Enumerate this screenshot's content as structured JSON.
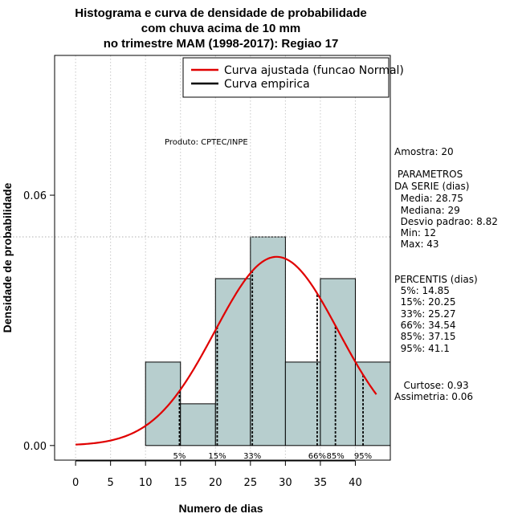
{
  "chart_data": {
    "type": "bar",
    "title_lines": [
      "Histograma e curva de densidade de probabilidade",
      "com chuva acima de 10 mm",
      "no trimestre MAM (1998-2017): Regiao 17"
    ],
    "xlabel": "Numero de dias",
    "ylabel": "Densidade de probabilidade",
    "xlim": [
      -3,
      45
    ],
    "ylim": [
      -0.0035,
      0.0935
    ],
    "x_ticks": [
      0,
      5,
      10,
      15,
      20,
      25,
      30,
      35,
      40
    ],
    "y_ticks": [
      0.0,
      0.06
    ],
    "y_tick_labels": [
      "0.00",
      "0.06"
    ],
    "grid": true,
    "legend_position": "top-right",
    "bins": [
      {
        "from": 10,
        "to": 15,
        "density": 0.02
      },
      {
        "from": 15,
        "to": 20,
        "density": 0.01
      },
      {
        "from": 20,
        "to": 25,
        "density": 0.04
      },
      {
        "from": 25,
        "to": 30,
        "density": 0.05
      },
      {
        "from": 30,
        "to": 35,
        "density": 0.02
      },
      {
        "from": 35,
        "to": 40,
        "density": 0.04
      },
      {
        "from": 40,
        "to": 45,
        "density": 0.02
      }
    ],
    "bar_color": "#b7cece",
    "normal_curve": {
      "name": "Curva ajustada (funcao Normal)",
      "mean": 28.75,
      "sd": 8.82,
      "x_range": [
        0,
        43
      ],
      "color": "#e00000"
    },
    "empirical_curve": {
      "name": "Curva empirica",
      "color": "#000000"
    },
    "percentile_lines": [
      {
        "label": "5%",
        "value": 14.85
      },
      {
        "label": "15%",
        "value": 20.25
      },
      {
        "label": "33%",
        "value": 25.27
      },
      {
        "label": "66%",
        "value": 34.54
      },
      {
        "label": "85%",
        "value": 37.15
      },
      {
        "label": "95%",
        "value": 41.1
      }
    ],
    "reference_line_y": 0.05,
    "product_label": "Produto: CPTEC/INPE"
  },
  "stats_panel": {
    "amostra": "Amostra: 20",
    "params_title_1": " PARAMETROS",
    "params_title_2": "DA SERIE (dias)",
    "media": "  Media: 28.75",
    "mediana": "  Mediana: 29",
    "desvio": "  Desvio padrao: 8.82",
    "min": "  Min: 12",
    "max": "  Max: 43",
    "perc_title": "PERCENTIS (dias)",
    "p5": "  5%: 14.85",
    "p15": "  15%: 20.25",
    "p33": "  33%: 25.27",
    "p66": "  66%: 34.54",
    "p85": "  85%: 37.15",
    "p95": "  95%: 41.1",
    "curtose": "   Curtose: 0.93",
    "assimetria": "Assimetria: 0.06"
  }
}
